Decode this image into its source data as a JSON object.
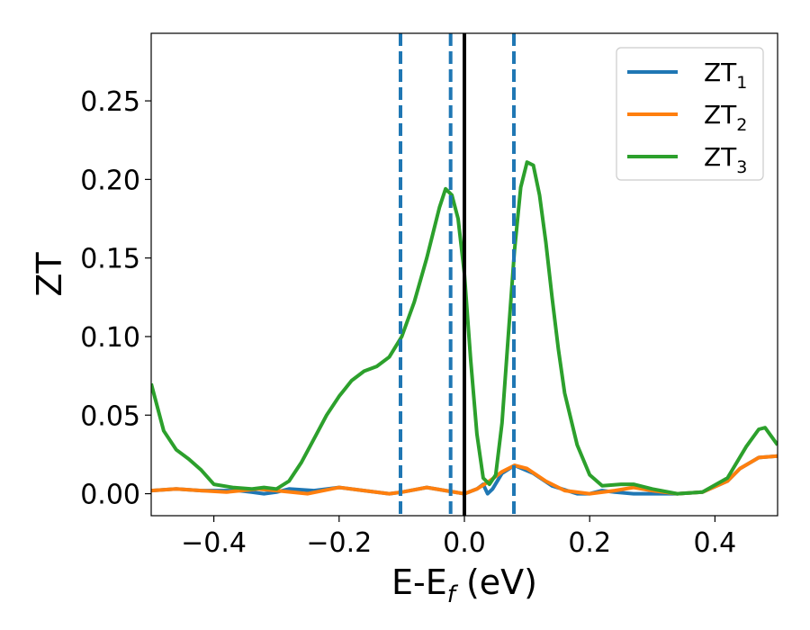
{
  "chart_data": {
    "type": "line",
    "xlabel": {
      "main": "E-E",
      "sub": "f",
      "unit": " (eV)"
    },
    "ylabel": "ZT",
    "xlim": [
      -0.5,
      0.5
    ],
    "ylim": [
      -0.014,
      0.293
    ],
    "x_ticks": [
      -0.4,
      -0.2,
      0.0,
      0.2,
      0.4
    ],
    "x_tick_labels": [
      "−0.4",
      "−0.2",
      "0.0",
      "0.2",
      "0.4"
    ],
    "y_ticks": [
      0.0,
      0.05,
      0.1,
      0.15,
      0.2,
      0.25
    ],
    "y_tick_labels": [
      "0.00",
      "0.05",
      "0.10",
      "0.15",
      "0.20",
      "0.25"
    ],
    "grid": false,
    "legend_position": "top-right",
    "vertical_lines": [
      {
        "x": -0.102,
        "color": "#1f77b4",
        "style": "dashed"
      },
      {
        "x": -0.022,
        "color": "#1f77b4",
        "style": "dashed"
      },
      {
        "x": 0.0,
        "color": "#000000",
        "style": "solid"
      },
      {
        "x": 0.079,
        "color": "#1f77b4",
        "style": "dashed"
      }
    ],
    "series": [
      {
        "name": "ZT",
        "name_sub": "1",
        "color": "#1f77b4",
        "points": [
          [
            -0.5,
            0.002
          ],
          [
            -0.46,
            0.003
          ],
          [
            -0.42,
            0.002
          ],
          [
            -0.36,
            0.002
          ],
          [
            -0.34,
            0.001
          ],
          [
            -0.32,
            0.0
          ],
          [
            -0.3,
            0.001
          ],
          [
            -0.28,
            0.003
          ],
          [
            -0.24,
            0.002
          ],
          [
            -0.2,
            0.004
          ],
          [
            -0.16,
            0.002
          ],
          [
            -0.12,
            0.0
          ],
          [
            -0.1,
            0.001
          ],
          [
            -0.06,
            0.004
          ],
          [
            -0.03,
            0.002
          ],
          [
            0.0,
            0.0
          ],
          [
            0.02,
            0.003
          ],
          [
            0.03,
            0.006
          ],
          [
            0.037,
            0.0
          ],
          [
            0.045,
            0.003
          ],
          [
            0.06,
            0.013
          ],
          [
            0.08,
            0.018
          ],
          [
            0.11,
            0.013
          ],
          [
            0.14,
            0.005
          ],
          [
            0.18,
            0.0
          ],
          [
            0.2,
            0.0
          ],
          [
            0.22,
            0.002
          ],
          [
            0.24,
            0.001
          ],
          [
            0.27,
            0.0
          ],
          [
            0.3,
            0.0
          ],
          [
            0.34,
            0.0
          ],
          [
            0.38,
            0.001
          ],
          [
            0.42,
            0.008
          ],
          [
            0.44,
            0.016
          ],
          [
            0.47,
            0.023
          ],
          [
            0.5,
            0.024
          ]
        ]
      },
      {
        "name": "ZT",
        "name_sub": "2",
        "color": "#ff7f0e",
        "points": [
          [
            -0.5,
            0.002
          ],
          [
            -0.46,
            0.003
          ],
          [
            -0.42,
            0.002
          ],
          [
            -0.38,
            0.001
          ],
          [
            -0.33,
            0.003
          ],
          [
            -0.3,
            0.002
          ],
          [
            -0.25,
            0.0
          ],
          [
            -0.2,
            0.004
          ],
          [
            -0.16,
            0.002
          ],
          [
            -0.12,
            0.0
          ],
          [
            -0.1,
            0.001
          ],
          [
            -0.06,
            0.004
          ],
          [
            -0.03,
            0.002
          ],
          [
            0.0,
            0.0
          ],
          [
            0.02,
            0.003
          ],
          [
            0.04,
            0.008
          ],
          [
            0.06,
            0.014
          ],
          [
            0.08,
            0.018
          ],
          [
            0.1,
            0.016
          ],
          [
            0.13,
            0.008
          ],
          [
            0.16,
            0.002
          ],
          [
            0.2,
            0.0
          ],
          [
            0.24,
            0.002
          ],
          [
            0.27,
            0.004
          ],
          [
            0.3,
            0.002
          ],
          [
            0.34,
            0.0
          ],
          [
            0.38,
            0.001
          ],
          [
            0.42,
            0.008
          ],
          [
            0.44,
            0.016
          ],
          [
            0.47,
            0.023
          ],
          [
            0.5,
            0.024
          ]
        ]
      },
      {
        "name": "ZT",
        "name_sub": "3",
        "color": "#2ca02c",
        "points": [
          [
            -0.5,
            0.07
          ],
          [
            -0.48,
            0.04
          ],
          [
            -0.46,
            0.028
          ],
          [
            -0.44,
            0.022
          ],
          [
            -0.42,
            0.015
          ],
          [
            -0.4,
            0.006
          ],
          [
            -0.37,
            0.004
          ],
          [
            -0.34,
            0.003
          ],
          [
            -0.32,
            0.004
          ],
          [
            -0.3,
            0.003
          ],
          [
            -0.28,
            0.008
          ],
          [
            -0.26,
            0.02
          ],
          [
            -0.24,
            0.035
          ],
          [
            -0.22,
            0.05
          ],
          [
            -0.2,
            0.062
          ],
          [
            -0.18,
            0.072
          ],
          [
            -0.16,
            0.078
          ],
          [
            -0.14,
            0.081
          ],
          [
            -0.12,
            0.087
          ],
          [
            -0.1,
            0.1
          ],
          [
            -0.08,
            0.122
          ],
          [
            -0.06,
            0.15
          ],
          [
            -0.04,
            0.182
          ],
          [
            -0.03,
            0.194
          ],
          [
            -0.02,
            0.19
          ],
          [
            -0.01,
            0.175
          ],
          [
            0.0,
            0.14
          ],
          [
            0.01,
            0.085
          ],
          [
            0.02,
            0.038
          ],
          [
            0.03,
            0.01
          ],
          [
            0.04,
            0.006
          ],
          [
            0.05,
            0.012
          ],
          [
            0.06,
            0.045
          ],
          [
            0.07,
            0.1
          ],
          [
            0.08,
            0.155
          ],
          [
            0.09,
            0.195
          ],
          [
            0.1,
            0.211
          ],
          [
            0.11,
            0.209
          ],
          [
            0.12,
            0.19
          ],
          [
            0.13,
            0.16
          ],
          [
            0.14,
            0.125
          ],
          [
            0.15,
            0.092
          ],
          [
            0.16,
            0.064
          ],
          [
            0.18,
            0.031
          ],
          [
            0.2,
            0.012
          ],
          [
            0.22,
            0.005
          ],
          [
            0.25,
            0.006
          ],
          [
            0.27,
            0.006
          ],
          [
            0.3,
            0.003
          ],
          [
            0.34,
            0.0
          ],
          [
            0.38,
            0.001
          ],
          [
            0.42,
            0.01
          ],
          [
            0.45,
            0.03
          ],
          [
            0.47,
            0.041
          ],
          [
            0.48,
            0.042
          ],
          [
            0.5,
            0.031
          ]
        ]
      }
    ]
  }
}
